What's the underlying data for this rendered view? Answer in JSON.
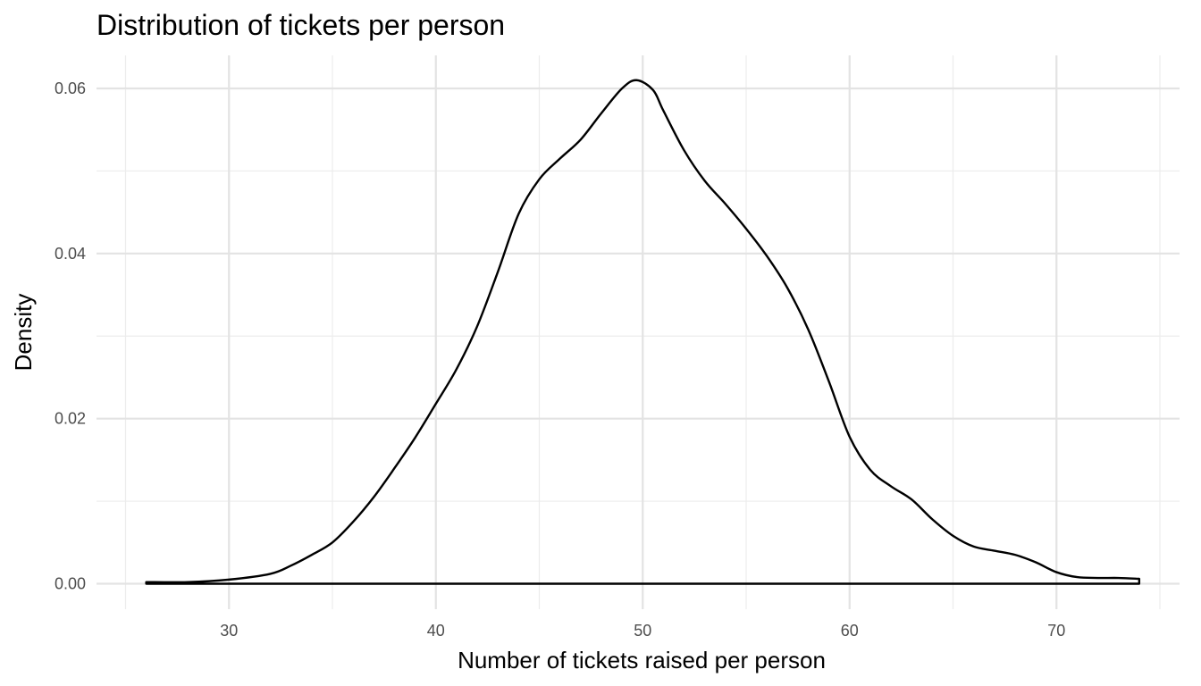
{
  "chart_data": {
    "type": "line",
    "title": "Distribution of tickets per person",
    "xlabel": "Number of tickets raised per person",
    "ylabel": "Density",
    "xlim": [
      26,
      74
    ],
    "ylim": [
      0,
      0.061
    ],
    "grid": true,
    "legend": "none",
    "x_ticks": [
      30,
      40,
      50,
      60,
      70
    ],
    "x_tick_labels": [
      "30",
      "40",
      "50",
      "60",
      "70"
    ],
    "y_ticks": [
      0,
      0.02,
      0.04,
      0.06
    ],
    "y_tick_labels": [
      "0.00",
      "0.02",
      "0.04",
      "0.06"
    ],
    "series": [
      {
        "color": "#000000",
        "x": [
          26,
          28,
          30,
          32,
          33,
          34,
          35,
          36,
          37,
          38,
          39,
          40,
          41,
          42,
          43,
          44,
          45,
          46,
          47,
          48,
          49,
          49.7,
          50.5,
          51,
          52,
          53,
          54,
          55,
          56,
          57,
          58,
          59,
          60,
          61,
          62,
          63,
          64,
          65,
          66,
          67,
          68,
          69,
          70,
          71,
          72,
          73,
          74
        ],
        "y": [
          0.0002,
          0.0002,
          0.0005,
          0.0012,
          0.0022,
          0.0035,
          0.005,
          0.0075,
          0.0105,
          0.014,
          0.0177,
          0.0218,
          0.026,
          0.0312,
          0.0378,
          0.0448,
          0.049,
          0.0515,
          0.0538,
          0.057,
          0.06,
          0.061,
          0.0598,
          0.0573,
          0.0525,
          0.0488,
          0.046,
          0.043,
          0.0397,
          0.0358,
          0.0308,
          0.0245,
          0.0178,
          0.0138,
          0.0118,
          0.0102,
          0.0078,
          0.0058,
          0.0045,
          0.004,
          0.0035,
          0.0026,
          0.0014,
          0.0008,
          0.0007,
          0.0007,
          0.0006
        ]
      }
    ]
  }
}
